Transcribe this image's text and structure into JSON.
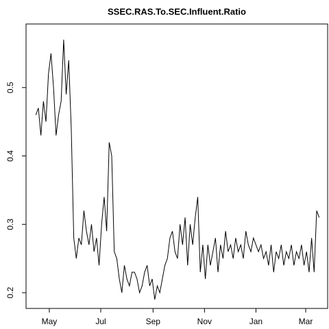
{
  "chart_data": {
    "type": "line",
    "title": "SSEC.RAS.To.SEC.Influent.Ratio",
    "x": [
      -16,
      -13,
      -10,
      -7,
      -4,
      -1,
      2,
      5,
      8,
      11,
      14,
      17,
      20,
      23,
      26,
      29,
      32,
      35,
      38,
      41,
      44,
      47,
      50,
      53,
      56,
      59,
      62,
      65,
      68,
      71,
      74,
      77,
      80,
      83,
      86,
      89,
      92,
      95,
      98,
      101,
      104,
      107,
      110,
      113,
      116,
      119,
      122,
      125,
      128,
      131,
      134,
      137,
      140,
      143,
      146,
      149,
      152,
      155,
      158,
      161,
      164,
      167,
      170,
      173,
      176,
      179,
      182,
      185,
      188,
      191,
      194,
      197,
      200,
      203,
      206,
      209,
      212,
      215,
      218,
      221,
      224,
      227,
      230,
      233,
      236,
      239,
      242,
      245,
      248,
      251,
      254,
      257,
      260,
      263,
      266,
      269,
      272,
      275,
      278,
      281,
      284,
      287,
      290,
      293,
      296,
      299,
      302,
      305,
      308,
      311,
      314,
      317,
      320
    ],
    "series": [
      {
        "color": "#000000",
        "values": [
          0.46,
          0.47,
          0.43,
          0.48,
          0.45,
          0.52,
          0.55,
          0.5,
          0.43,
          0.46,
          0.48,
          0.57,
          0.49,
          0.54,
          0.44,
          0.28,
          0.25,
          0.28,
          0.27,
          0.32,
          0.29,
          0.27,
          0.3,
          0.26,
          0.28,
          0.24,
          0.3,
          0.34,
          0.29,
          0.42,
          0.4,
          0.26,
          0.25,
          0.22,
          0.2,
          0.24,
          0.22,
          0.21,
          0.23,
          0.23,
          0.22,
          0.2,
          0.21,
          0.23,
          0.24,
          0.21,
          0.22,
          0.19,
          0.21,
          0.2,
          0.22,
          0.24,
          0.25,
          0.28,
          0.29,
          0.26,
          0.25,
          0.3,
          0.27,
          0.31,
          0.24,
          0.3,
          0.27,
          0.31,
          0.34,
          0.23,
          0.27,
          0.22,
          0.27,
          0.24,
          0.26,
          0.28,
          0.23,
          0.27,
          0.25,
          0.29,
          0.26,
          0.27,
          0.25,
          0.28,
          0.26,
          0.27,
          0.25,
          0.29,
          0.27,
          0.26,
          0.28,
          0.27,
          0.26,
          0.27,
          0.25,
          0.26,
          0.24,
          0.27,
          0.23,
          0.26,
          0.25,
          0.27,
          0.24,
          0.26,
          0.25,
          0.27,
          0.24,
          0.26,
          0.25,
          0.27,
          0.24,
          0.26,
          0.23,
          0.28,
          0.23,
          0.32,
          0.31
        ]
      }
    ],
    "xlim": [
      -27.6,
      330
    ],
    "xticks": [
      {
        "value": 0,
        "label": "May"
      },
      {
        "value": 61,
        "label": "Jul"
      },
      {
        "value": 123,
        "label": "Sep"
      },
      {
        "value": 184,
        "label": "Nov"
      },
      {
        "value": 245,
        "label": "Jan"
      },
      {
        "value": 304,
        "label": "Mar"
      }
    ],
    "ylim": [
      0.177,
      0.593
    ],
    "yticks": [
      0.2,
      0.3,
      0.4,
      0.5
    ]
  }
}
